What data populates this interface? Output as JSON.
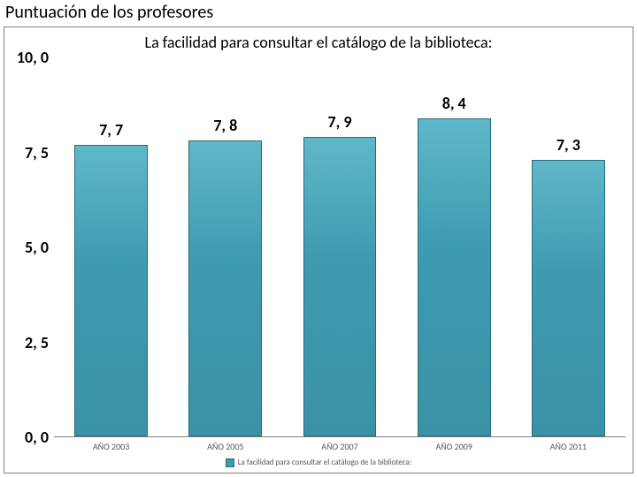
{
  "page_title": "Puntuación de los profesores",
  "page_title_fontsize": 20,
  "chart": {
    "type": "bar",
    "title": "La facilidad para consultar el catálogo de la biblioteca:",
    "title_fontsize": 18,
    "title_color": "#000000",
    "categories": [
      "AÑO 2003",
      "AÑO 2005",
      "AÑO 2007",
      "AÑO 2009",
      "AÑO 2011"
    ],
    "values": [
      7.7,
      7.8,
      7.9,
      8.4,
      7.3
    ],
    "value_labels": [
      "7, 7",
      "7, 8",
      "7, 9",
      "8, 4",
      "7, 3"
    ],
    "value_label_fontsize": 18,
    "value_label_color": "#000000",
    "value_label_weight": "700",
    "bar_color_top": "#5fb8c9",
    "bar_color_mid": "#3e9bb0",
    "bar_color_bottom": "#3a92a6",
    "bar_border_color": "#2a6a78",
    "bar_width_ratio": 0.64,
    "y_axis": {
      "min": 0.0,
      "max": 10.0,
      "tick_step": 2.5,
      "ticks": [
        0.0,
        2.5,
        5.0,
        7.5,
        10.0
      ],
      "tick_labels": [
        "0, 0",
        "2, 5",
        "5, 0",
        "7, 5",
        "10, 0"
      ],
      "tick_fontsize": 18,
      "tick_weight": "700",
      "tick_color": "#000000"
    },
    "x_axis": {
      "label_fontsize": 10,
      "label_color": "#555555"
    },
    "legend": {
      "text": "La facilidad para consultar el catálogo de la biblioteca:",
      "fontsize": 9,
      "swatch_color": "#3e9bb0",
      "text_color": "#555555"
    },
    "background_color": "#ffffff",
    "frame_border_color": "#808080",
    "axis_line_color": "#808080"
  }
}
